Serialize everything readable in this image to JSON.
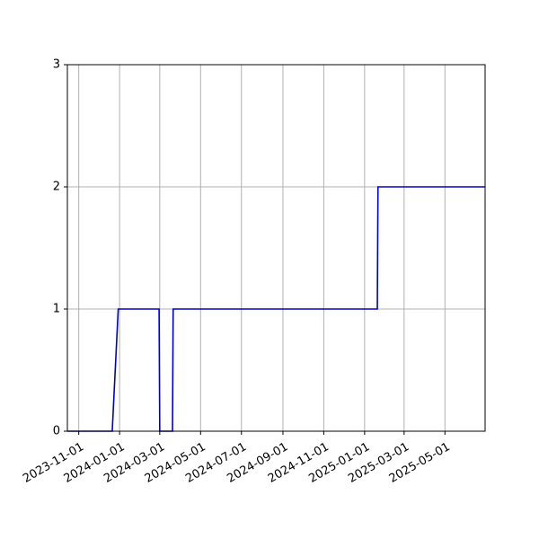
{
  "chart_data": {
    "type": "line",
    "title": "",
    "xlabel": "",
    "ylabel": "",
    "grid": true,
    "xlim": [
      "2023-10-15",
      "2025-06-30"
    ],
    "ylim": [
      0,
      3
    ],
    "x_ticks": [
      "2023-11-01",
      "2024-01-01",
      "2024-03-01",
      "2024-05-01",
      "2024-07-01",
      "2024-09-01",
      "2024-11-01",
      "2025-01-01",
      "2025-03-01",
      "2025-05-01"
    ],
    "y_ticks": [
      0,
      1,
      2,
      3
    ],
    "series": [
      {
        "color": "#0000cc",
        "points": [
          {
            "x": "2023-10-15",
            "y": 0
          },
          {
            "x": "2023-12-21",
            "y": 0
          },
          {
            "x": "2023-12-30",
            "y": 1
          },
          {
            "x": "2024-02-29",
            "y": 1
          },
          {
            "x": "2024-03-01",
            "y": 0
          },
          {
            "x": "2024-03-20",
            "y": 0
          },
          {
            "x": "2024-03-21",
            "y": 1
          },
          {
            "x": "2025-01-20",
            "y": 1
          },
          {
            "x": "2025-01-21",
            "y": 2
          },
          {
            "x": "2025-06-30",
            "y": 2
          }
        ]
      }
    ]
  }
}
